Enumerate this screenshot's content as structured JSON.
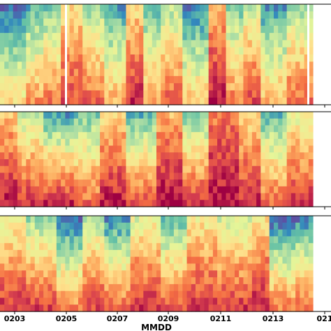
{
  "chart_data": {
    "type": "heatmap",
    "xlabel": "MMDD",
    "x_ticks": [
      "0203",
      "0205",
      "0207",
      "0209",
      "0211",
      "0213",
      "021"
    ],
    "colormap": "Spectral_r",
    "colormap_stops": [
      "#5e4fa2",
      "#3288bd",
      "#66c2a5",
      "#abdda4",
      "#e6f598",
      "#fee08b",
      "#fdae61",
      "#f46d43",
      "#d53e4f",
      "#9e0142"
    ],
    "panels": [
      {
        "rows": 14,
        "cols": 72,
        "gaps_at_tick": [
          "0205",
          "0213+"
        ],
        "bands": [
          {
            "from": 0.0,
            "to": 0.08,
            "top": 0.05,
            "bottom": 0.55
          },
          {
            "from": 0.08,
            "to": 0.14,
            "top": 0.2,
            "bottom": 0.7
          },
          {
            "from": 0.14,
            "to": 0.2,
            "top": 0.25,
            "bottom": 0.75
          },
          {
            "from": 0.2,
            "to": 0.26,
            "top": 0.55,
            "bottom": 0.85
          },
          {
            "from": 0.26,
            "to": 0.34,
            "top": 0.3,
            "bottom": 0.8
          },
          {
            "from": 0.34,
            "to": 0.4,
            "top": 0.15,
            "bottom": 0.65
          },
          {
            "from": 0.4,
            "to": 0.46,
            "top": 0.55,
            "bottom": 0.92
          },
          {
            "from": 0.46,
            "to": 0.52,
            "top": 0.2,
            "bottom": 0.7
          },
          {
            "from": 0.52,
            "to": 0.58,
            "top": 0.35,
            "bottom": 0.8
          },
          {
            "from": 0.58,
            "to": 0.66,
            "top": 0.1,
            "bottom": 0.6
          },
          {
            "from": 0.66,
            "to": 0.72,
            "top": 0.65,
            "bottom": 0.95
          },
          {
            "from": 0.72,
            "to": 0.78,
            "top": 0.25,
            "bottom": 0.75
          },
          {
            "from": 0.78,
            "to": 0.84,
            "top": 0.4,
            "bottom": 0.85
          },
          {
            "from": 0.84,
            "to": 0.92,
            "top": 0.15,
            "bottom": 0.65
          },
          {
            "from": 0.92,
            "to": 1.0,
            "top": 0.3,
            "bottom": 0.8
          }
        ]
      },
      {
        "rows": 14,
        "cols": 72,
        "bands": [
          {
            "from": 0.0,
            "to": 0.06,
            "top": 0.6,
            "bottom": 0.95
          },
          {
            "from": 0.06,
            "to": 0.14,
            "top": 0.35,
            "bottom": 0.9
          },
          {
            "from": 0.14,
            "to": 0.24,
            "top": 0.15,
            "bottom": 0.92
          },
          {
            "from": 0.24,
            "to": 0.32,
            "top": 0.25,
            "bottom": 0.8
          },
          {
            "from": 0.32,
            "to": 0.4,
            "top": 0.55,
            "bottom": 0.95
          },
          {
            "from": 0.4,
            "to": 0.5,
            "top": 0.2,
            "bottom": 0.85
          },
          {
            "from": 0.5,
            "to": 0.58,
            "top": 0.65,
            "bottom": 0.98
          },
          {
            "from": 0.58,
            "to": 0.66,
            "top": 0.25,
            "bottom": 0.88
          },
          {
            "from": 0.66,
            "to": 0.76,
            "top": 0.75,
            "bottom": 0.98
          },
          {
            "from": 0.76,
            "to": 0.84,
            "top": 0.55,
            "bottom": 0.92
          },
          {
            "from": 0.84,
            "to": 0.92,
            "top": 0.2,
            "bottom": 0.8
          },
          {
            "from": 0.92,
            "to": 1.0,
            "top": 0.45,
            "bottom": 0.9
          }
        ]
      },
      {
        "rows": 14,
        "cols": 72,
        "bands": [
          {
            "from": 0.0,
            "to": 0.08,
            "top": 0.45,
            "bottom": 0.9
          },
          {
            "from": 0.08,
            "to": 0.18,
            "top": 0.3,
            "bottom": 0.88
          },
          {
            "from": 0.18,
            "to": 0.26,
            "top": 0.05,
            "bottom": 0.75
          },
          {
            "from": 0.26,
            "to": 0.34,
            "top": 0.35,
            "bottom": 0.85
          },
          {
            "from": 0.34,
            "to": 0.42,
            "top": 0.1,
            "bottom": 0.8
          },
          {
            "from": 0.42,
            "to": 0.52,
            "top": 0.45,
            "bottom": 0.9
          },
          {
            "from": 0.52,
            "to": 0.6,
            "top": 0.2,
            "bottom": 0.85
          },
          {
            "from": 0.6,
            "to": 0.7,
            "top": 0.5,
            "bottom": 0.9
          },
          {
            "from": 0.7,
            "to": 0.8,
            "top": 0.4,
            "bottom": 0.88
          },
          {
            "from": 0.8,
            "to": 0.86,
            "top": 0.55,
            "bottom": 0.92
          },
          {
            "from": 0.86,
            "to": 0.94,
            "top": 0.05,
            "bottom": 0.75
          },
          {
            "from": 0.94,
            "to": 1.0,
            "top": 0.1,
            "bottom": 0.8
          }
        ]
      }
    ]
  }
}
